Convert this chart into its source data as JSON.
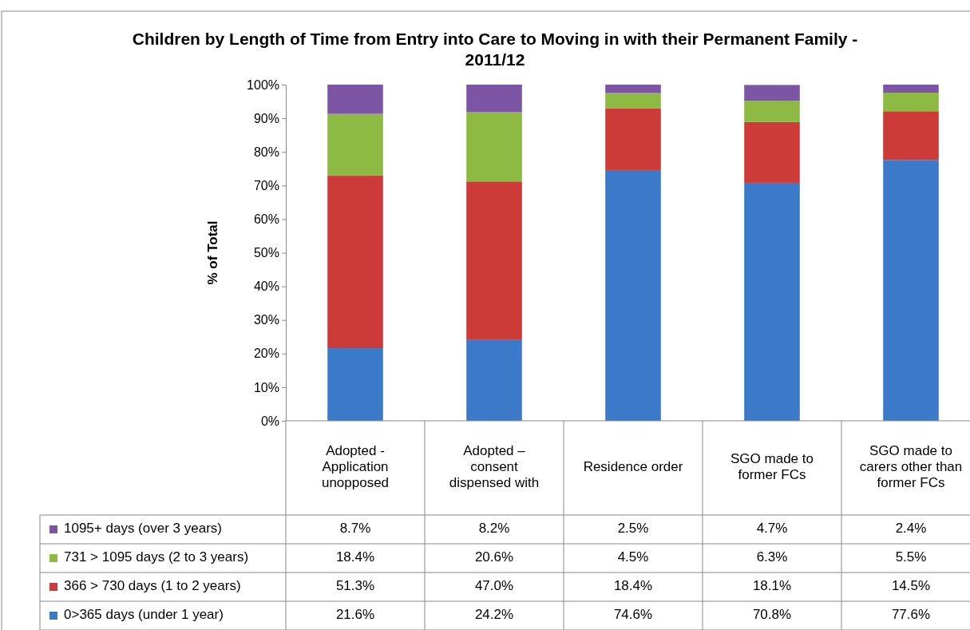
{
  "chart_data": {
    "type": "bar",
    "stacked": true,
    "title": "Children by Length of Time from Entry into Care to Moving in with their Permanent Family - 2011/12",
    "ylabel": "% of Total",
    "categories": [
      "Adopted - Application unopposed",
      "Adopted – consent dispensed with",
      "Residence order",
      "SGO made to former FCs",
      "SGO made to carers other than former FCs"
    ],
    "series": [
      {
        "name": "0>365 days (under 1 year)",
        "color": "#3b7ac9",
        "values": [
          21.6,
          24.2,
          74.6,
          70.8,
          77.6
        ],
        "value_labels": [
          "21.6%",
          "24.2%",
          "74.6%",
          "70.8%",
          "77.6%"
        ]
      },
      {
        "name": "366 > 730 days (1 to 2 years)",
        "color": "#cc3b37",
        "values": [
          51.3,
          47.0,
          18.4,
          18.1,
          14.5
        ],
        "value_labels": [
          "51.3%",
          "47.0%",
          "18.4%",
          "18.1%",
          "14.5%"
        ]
      },
      {
        "name": "731 > 1095 days (2 to 3 years)",
        "color": "#8dba42",
        "values": [
          18.4,
          20.6,
          4.5,
          6.3,
          5.5
        ],
        "value_labels": [
          "18.4%",
          "20.6%",
          "4.5%",
          "6.3%",
          "5.5%"
        ]
      },
      {
        "name": "1095+ days (over 3 years)",
        "color": "#7d55a5",
        "values": [
          8.7,
          8.2,
          2.5,
          4.7,
          2.4
        ],
        "value_labels": [
          "8.7%",
          "8.2%",
          "2.5%",
          "4.7%",
          "2.4%"
        ]
      }
    ],
    "ylim": [
      0,
      100
    ],
    "yticks": [
      {
        "value": 0,
        "label": "0%"
      },
      {
        "value": 10,
        "label": "10%"
      },
      {
        "value": 20,
        "label": "20%"
      },
      {
        "value": 30,
        "label": "30%"
      },
      {
        "value": 40,
        "label": "40%"
      },
      {
        "value": 50,
        "label": "50%"
      },
      {
        "value": 60,
        "label": "60%"
      },
      {
        "value": 70,
        "label": "70%"
      },
      {
        "value": 80,
        "label": "80%"
      },
      {
        "value": 90,
        "label": "90%"
      },
      {
        "value": 100,
        "label": "100%"
      }
    ],
    "legend": "bottom"
  }
}
